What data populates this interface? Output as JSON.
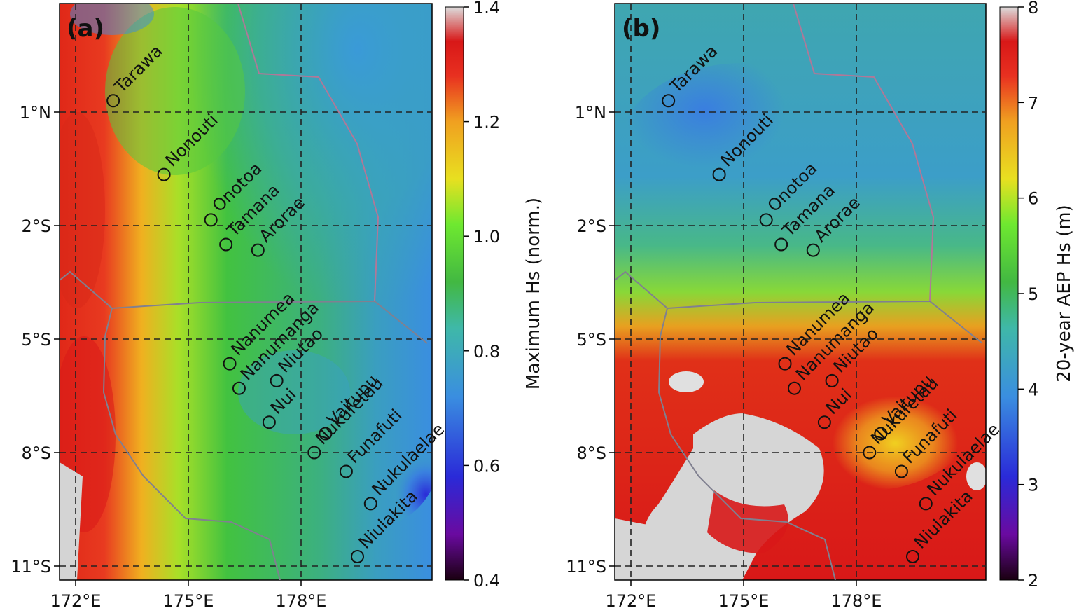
{
  "panels": [
    {
      "id": "a",
      "label": "(a)",
      "x_ticks": [
        "172°E",
        "175°E",
        "178°E"
      ],
      "y_ticks": [
        "1°N",
        "2°S",
        "5°S",
        "8°S",
        "11°S"
      ],
      "colorbar": {
        "label": "Maximum Hs (norm.)",
        "ticks": [
          "0.4",
          "0.6",
          "0.8",
          "1.0",
          "1.2",
          "1.4"
        ],
        "range": [
          0.4,
          1.4
        ]
      }
    },
    {
      "id": "b",
      "label": "(b)",
      "x_ticks": [
        "172°E",
        "175°E",
        "178°E"
      ],
      "y_ticks": [
        "1°N",
        "2°S",
        "5°S",
        "8°S",
        "11°S"
      ],
      "colorbar": {
        "label": "20-year AEP Hs (m)",
        "ticks": [
          "2",
          "3",
          "4",
          "5",
          "6",
          "7",
          "8"
        ],
        "range": [
          2,
          8
        ]
      }
    }
  ],
  "map": {
    "lon_range": [
      171,
      180.5
    ],
    "lat_range": [
      -11.4,
      3.8
    ],
    "gridlines": "dashed",
    "colormap_colors": [
      "#1a0030",
      "#6a0aa0",
      "#2a2ad8",
      "#3a8ee0",
      "#3fb8a8",
      "#42b842",
      "#6ee830",
      "#e8e020",
      "#f0a020",
      "#e83020",
      "#d81818",
      "#dcdcdc"
    ]
  },
  "islands": [
    {
      "name": "Tarawa",
      "lon": 173.0,
      "lat": 1.3
    },
    {
      "name": "Nonouti",
      "lon": 174.35,
      "lat": -0.65
    },
    {
      "name": "Onotoa",
      "lon": 175.6,
      "lat": -1.85
    },
    {
      "name": "Tamana",
      "lon": 176.0,
      "lat": -2.5
    },
    {
      "name": "Arorae",
      "lon": 176.85,
      "lat": -2.65
    },
    {
      "name": "Nanumea",
      "lon": 176.1,
      "lat": -5.65
    },
    {
      "name": "Nanumanga",
      "lon": 176.35,
      "lat": -6.3
    },
    {
      "name": "Niutao",
      "lon": 177.35,
      "lat": -6.1
    },
    {
      "name": "Nui",
      "lon": 177.15,
      "lat": -7.2
    },
    {
      "name": "Vaitupu",
      "lon": 178.65,
      "lat": -7.5
    },
    {
      "name": "Nukufetau",
      "lon": 178.35,
      "lat": -8.0
    },
    {
      "name": "Funafuti",
      "lon": 179.2,
      "lat": -8.5
    },
    {
      "name": "Nukulaelae",
      "lon": 179.85,
      "lat": -9.35
    },
    {
      "name": "Niulakita",
      "lon": 179.5,
      "lat": -10.75
    }
  ]
}
